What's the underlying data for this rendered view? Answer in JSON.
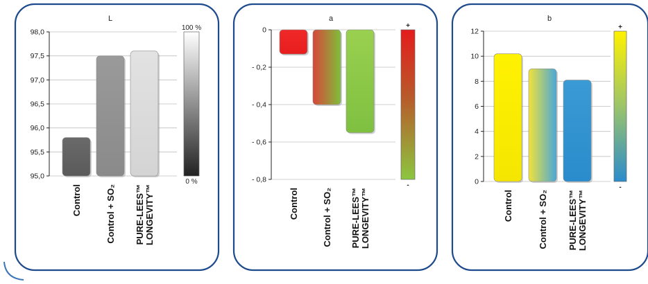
{
  "chart_data": [
    {
      "type": "bar",
      "title": "L",
      "categories": [
        "Control",
        "Control + SO₂",
        [
          "PURE-LEES™",
          "LONGEVITY™"
        ]
      ],
      "values": [
        95.8,
        97.5,
        97.6
      ],
      "ylim": [
        95.0,
        98.0
      ],
      "yticks": [
        "98,0",
        "97,5",
        "97,0",
        "96,5",
        "96,0",
        "95,5",
        "95,0"
      ],
      "ytick_values": [
        98.0,
        97.5,
        97.0,
        96.5,
        96.0,
        95.5,
        95.0
      ],
      "grid": true,
      "bar_colors": [
        [
          "#6a6a6a",
          "#5a5a5a"
        ],
        [
          "#9a9a9a",
          "#8a8a8a"
        ],
        [
          "#e2e2e2",
          "#d4d4d4"
        ]
      ],
      "color_scale": {
        "top_label": "100 %",
        "bottom_label": "0 %",
        "top_color": "#ffffff",
        "bottom_color": "#222222"
      }
    },
    {
      "type": "bar",
      "title": "a",
      "categories": [
        "Control",
        "Control + SO₂",
        [
          "PURE-LEES™",
          "LONGEVITY™"
        ]
      ],
      "values": [
        -0.13,
        -0.4,
        -0.55
      ],
      "ylim": [
        -0.8,
        0
      ],
      "yticks": [
        "0",
        "- 0,2",
        "- 0,4",
        "- 0,6",
        "- 0,8"
      ],
      "ytick_values": [
        0,
        -0.2,
        -0.4,
        -0.6,
        -0.8
      ],
      "grid": true,
      "bar_colors": [
        [
          "#f02828",
          "#e81e1e"
        ],
        [
          "#d9453a",
          "#7fbf3a"
        ],
        [
          "#9ad050",
          "#7fc040"
        ]
      ],
      "color_scale": {
        "top_label": "+",
        "bottom_label": "-",
        "top_color": "#e41c1c",
        "bottom_color": "#8cc63f"
      }
    },
    {
      "type": "bar",
      "title": "b",
      "categories": [
        "Control",
        "Control + SO₂",
        [
          "PURE-LEES™",
          "LONGEVITY™"
        ]
      ],
      "values": [
        10.2,
        9.0,
        8.1
      ],
      "ylim": [
        0,
        12
      ],
      "yticks": [
        "12",
        "10",
        "8",
        "6",
        "4",
        "2",
        "0"
      ],
      "ytick_values": [
        12,
        10,
        8,
        6,
        4,
        2,
        0
      ],
      "grid": true,
      "bar_colors": [
        [
          "#fff200",
          "#f5e600"
        ],
        [
          "#f0e23a",
          "#4aa8d8"
        ],
        [
          "#3a9ad4",
          "#2a8ccc"
        ]
      ],
      "color_scale": {
        "top_label": "+",
        "bottom_label": "-",
        "top_color": "#fff200",
        "bottom_color": "#2a8ccc"
      }
    }
  ]
}
